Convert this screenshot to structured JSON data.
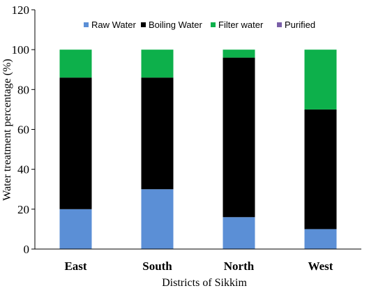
{
  "chart_data": {
    "type": "bar",
    "stacked": true,
    "categories": [
      "East",
      "South",
      "North",
      "West"
    ],
    "series": [
      {
        "name": "Raw Water",
        "color": "#5B8FD6",
        "values": [
          20,
          30,
          16,
          10
        ]
      },
      {
        "name": "Boiling Water",
        "color": "#000000",
        "values": [
          66,
          56,
          80,
          60
        ]
      },
      {
        "name": "Filter water",
        "color": "#0DB04B",
        "values": [
          14,
          14,
          4,
          30
        ]
      },
      {
        "name": "Purified",
        "color": "#7A5FA8",
        "values": [
          0,
          0,
          0,
          0
        ]
      }
    ],
    "xlabel": "Districts of Sikkim",
    "ylabel": "Water treatment percentage (%)",
    "ylim": [
      0,
      120
    ],
    "yticks": [
      "0",
      "20",
      "40",
      "60",
      "80",
      "100",
      "120"
    ],
    "grid": false,
    "legend_position": "top"
  }
}
